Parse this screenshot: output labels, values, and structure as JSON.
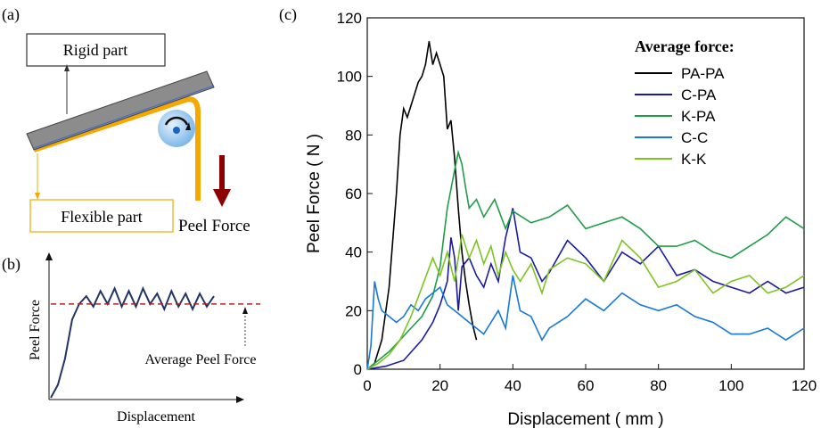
{
  "colors": {
    "rigid_part": "#8c8c8c",
    "flexible_strip": "#f5a800",
    "arrow_force": "#8b0000",
    "curve_b": "#1f3566",
    "avg_line_b": "#b22222",
    "roller": "#6aaee6"
  },
  "panel_a": {
    "label": "(a)",
    "rigid_label": "Rigid part",
    "flexible_label": "Flexible part",
    "force_label": "Peel Force"
  },
  "panel_b": {
    "label": "(b)",
    "ylabel": "Peel Force",
    "xlabel": "Displacement",
    "annotation": "Average Peel Force"
  },
  "panel_c": {
    "label": "(c)"
  },
  "chart_data": [
    {
      "type": "line",
      "panel": "(c)",
      "xlabel": "Displacement ( mm )",
      "ylabel": "Peel Force ( N )",
      "xlim": [
        0,
        120
      ],
      "ylim": [
        0,
        120
      ],
      "xticks": [
        "0",
        "20",
        "40",
        "60",
        "80",
        "100",
        "120"
      ],
      "yticks": [
        "0",
        "20",
        "40",
        "60",
        "80",
        "100",
        "120"
      ],
      "legend_title": "Average force:",
      "legend_position": "top-right",
      "series": [
        {
          "name": "PA-PA",
          "color": "#000000",
          "x": [
            0,
            2,
            4,
            6,
            8,
            9,
            10,
            11,
            12,
            13,
            14,
            15,
            16,
            17,
            18,
            19,
            20,
            21,
            22,
            23,
            24,
            25,
            26,
            27,
            28,
            29,
            30
          ],
          "y": [
            0,
            2,
            10,
            28,
            60,
            80,
            89,
            86,
            90,
            94,
            98,
            100,
            104,
            112,
            104,
            108,
            104,
            100,
            82,
            85,
            72,
            55,
            40,
            30,
            22,
            15,
            10
          ]
        },
        {
          "name": "C-PA",
          "color": "#1a1aa6",
          "x": [
            0,
            5,
            10,
            15,
            18,
            20,
            22,
            23,
            24,
            25,
            26,
            28,
            30,
            32,
            34,
            36,
            38,
            40,
            42,
            45,
            48,
            50,
            55,
            60,
            65,
            70,
            75,
            80,
            85,
            90,
            95,
            100,
            105,
            110,
            115,
            120
          ],
          "y": [
            0,
            1,
            3,
            10,
            16,
            22,
            30,
            45,
            38,
            20,
            35,
            38,
            32,
            28,
            36,
            30,
            45,
            55,
            40,
            38,
            30,
            33,
            44,
            38,
            30,
            40,
            36,
            42,
            32,
            34,
            30,
            28,
            26,
            30,
            26,
            28
          ]
        },
        {
          "name": "K-PA",
          "color": "#1e9e46",
          "x": [
            0,
            3,
            6,
            9,
            12,
            15,
            18,
            20,
            22,
            24,
            25,
            26,
            27,
            28,
            30,
            32,
            35,
            38,
            40,
            45,
            50,
            55,
            60,
            65,
            70,
            75,
            80,
            85,
            90,
            95,
            100,
            105,
            110,
            115,
            120
          ],
          "y": [
            0,
            3,
            6,
            10,
            14,
            18,
            25,
            35,
            55,
            68,
            74,
            70,
            62,
            55,
            58,
            52,
            58,
            48,
            54,
            50,
            52,
            56,
            48,
            50,
            52,
            48,
            42,
            42,
            44,
            40,
            38,
            42,
            46,
            52,
            48
          ]
        },
        {
          "name": "C-C",
          "color": "#1478dc",
          "x": [
            0,
            1,
            2,
            3,
            4,
            6,
            8,
            10,
            12,
            14,
            16,
            18,
            20,
            22,
            24,
            26,
            28,
            30,
            32,
            34,
            36,
            38,
            40,
            42,
            45,
            48,
            50,
            55,
            60,
            65,
            70,
            75,
            80,
            85,
            90,
            95,
            100,
            105,
            110,
            115,
            120
          ],
          "y": [
            0,
            8,
            30,
            24,
            20,
            18,
            16,
            18,
            22,
            20,
            24,
            26,
            28,
            22,
            20,
            18,
            16,
            14,
            12,
            16,
            20,
            14,
            32,
            20,
            18,
            10,
            14,
            18,
            24,
            20,
            26,
            22,
            20,
            22,
            18,
            16,
            12,
            12,
            14,
            10,
            14
          ]
        },
        {
          "name": "K-K",
          "color": "#7cc520",
          "x": [
            0,
            3,
            6,
            9,
            12,
            15,
            18,
            20,
            22,
            24,
            26,
            28,
            30,
            32,
            34,
            36,
            38,
            40,
            42,
            45,
            48,
            50,
            55,
            60,
            65,
            70,
            75,
            80,
            85,
            90,
            95,
            100,
            105,
            110,
            115,
            120
          ],
          "y": [
            0,
            2,
            5,
            10,
            18,
            28,
            38,
            32,
            40,
            30,
            46,
            38,
            44,
            36,
            42,
            32,
            40,
            34,
            30,
            36,
            26,
            34,
            38,
            36,
            30,
            44,
            38,
            28,
            30,
            34,
            26,
            30,
            32,
            26,
            28,
            32
          ]
        }
      ]
    },
    {
      "type": "line",
      "panel": "(b)",
      "xlabel": "Displacement",
      "ylabel": "Peel Force",
      "series": [
        {
          "name": "",
          "x": [
            0,
            1,
            2,
            3,
            4,
            5,
            6,
            7,
            8,
            9,
            10,
            11,
            12,
            13,
            14,
            15,
            16,
            17,
            18,
            19,
            20,
            21,
            22,
            23
          ],
          "y": [
            0,
            0.1,
            0.3,
            0.6,
            0.72,
            0.78,
            0.7,
            0.82,
            0.72,
            0.84,
            0.7,
            0.82,
            0.7,
            0.84,
            0.72,
            0.8,
            0.68,
            0.82,
            0.7,
            0.8,
            0.68,
            0.8,
            0.7,
            0.78
          ]
        }
      ],
      "average_value": 0.72
    }
  ]
}
